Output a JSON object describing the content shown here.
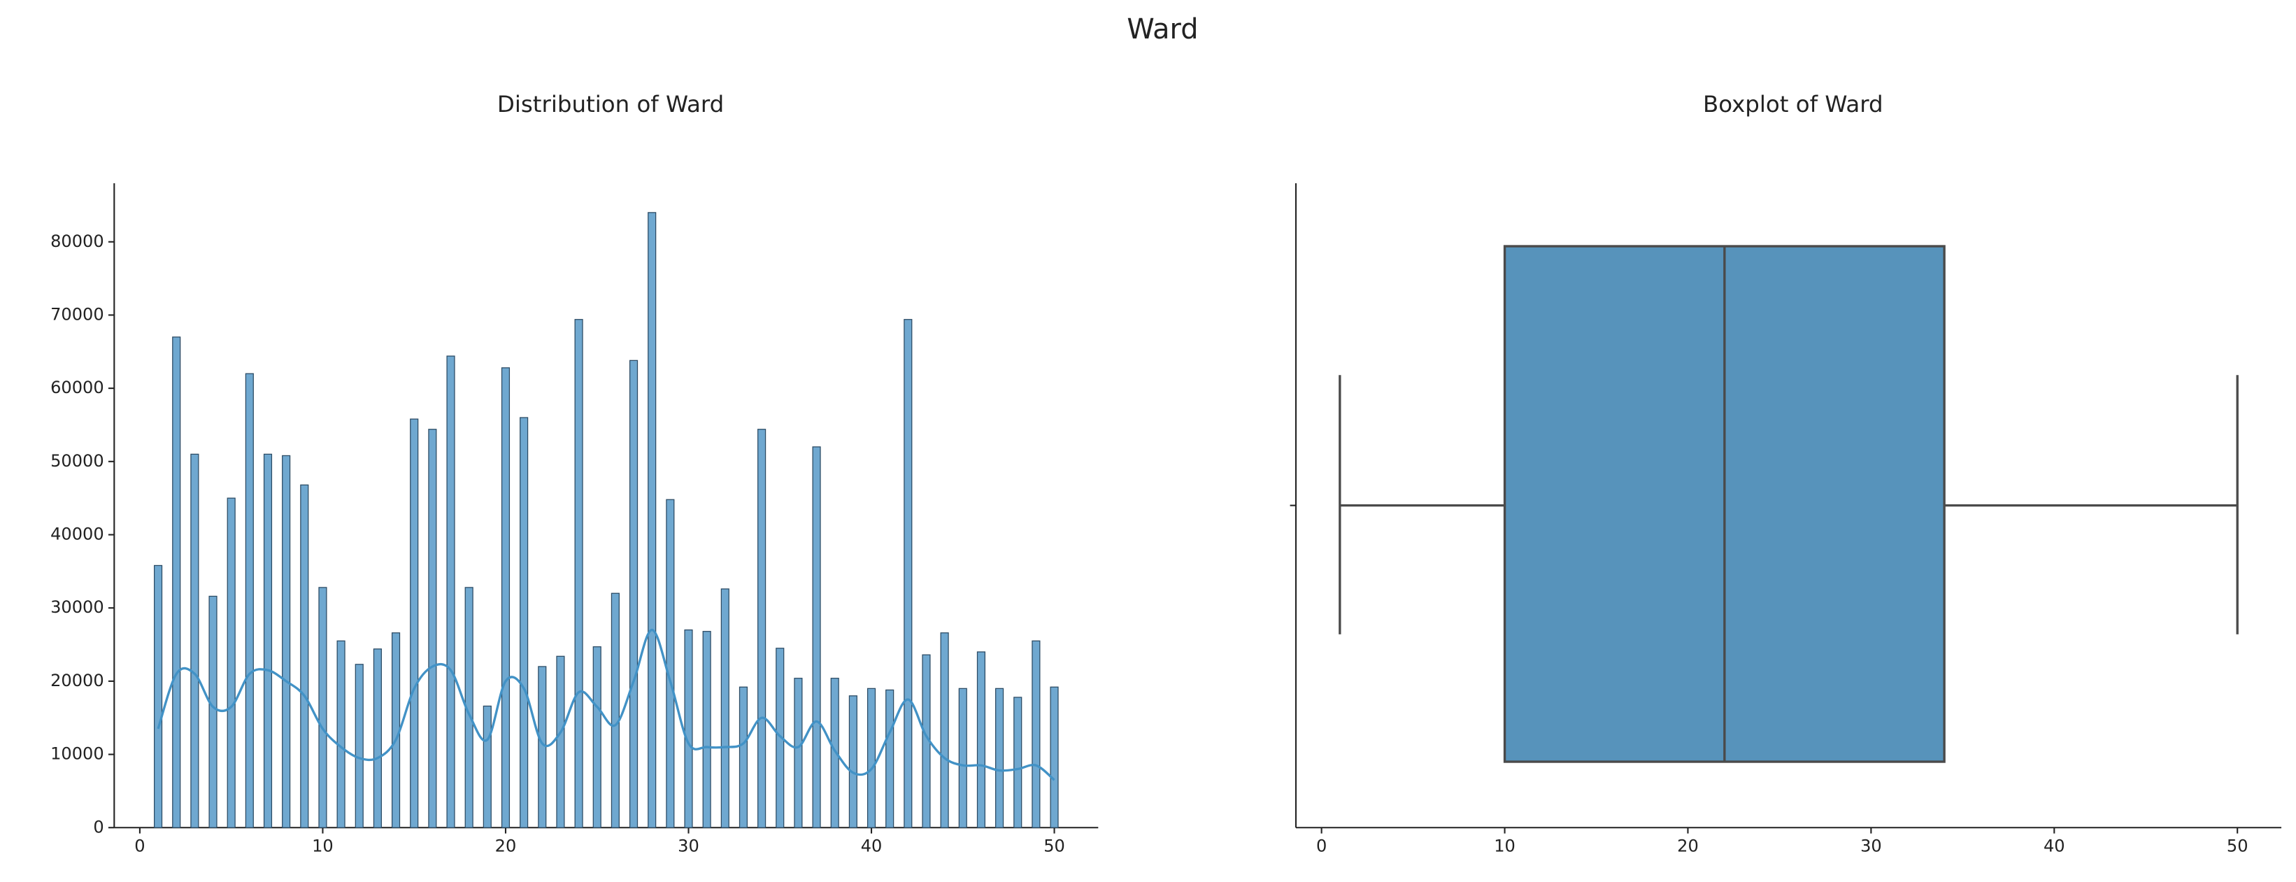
{
  "title": "Ward",
  "chart_data": [
    {
      "type": "histogram",
      "title": "Distribution of Ward",
      "x": [
        1,
        2,
        3,
        4,
        5,
        6,
        7,
        8,
        9,
        10,
        11,
        12,
        13,
        14,
        15,
        16,
        17,
        18,
        19,
        20,
        21,
        22,
        23,
        24,
        25,
        26,
        27,
        28,
        29,
        30,
        31,
        32,
        33,
        34,
        35,
        36,
        37,
        38,
        39,
        40,
        41,
        42,
        43,
        44,
        45,
        46,
        47,
        48,
        49,
        50
      ],
      "values": [
        35800,
        67000,
        51000,
        31600,
        45000,
        62000,
        51000,
        50800,
        46800,
        32800,
        25500,
        22300,
        24400,
        26600,
        55800,
        54400,
        64400,
        32800,
        16600,
        62800,
        56000,
        22000,
        23400,
        69400,
        24700,
        32000,
        63800,
        84000,
        44800,
        27000,
        26800,
        32600,
        19200,
        54400,
        24500,
        20400,
        52000,
        20400,
        18000,
        19000,
        18800,
        69400,
        23600,
        26600,
        19000,
        24000,
        19000,
        17800,
        25500,
        19200
      ],
      "color": "#6fa8d0",
      "line": {
        "x": [
          1,
          2,
          3,
          4,
          5,
          6,
          7,
          8,
          9,
          10,
          11,
          12,
          13,
          14,
          15,
          16,
          17,
          18,
          19,
          20,
          21,
          22,
          23,
          24,
          25,
          26,
          27,
          28,
          29,
          30,
          31,
          32,
          33,
          34,
          35,
          36,
          37,
          38,
          39,
          40,
          41,
          42,
          43,
          44,
          45,
          46,
          47,
          48,
          49,
          50
        ],
        "values": [
          13500,
          21000,
          21000,
          16500,
          16500,
          21000,
          21500,
          20000,
          18000,
          13500,
          11000,
          9500,
          9500,
          12000,
          19000,
          22000,
          21500,
          15500,
          12000,
          20000,
          19000,
          11500,
          13000,
          18500,
          16500,
          14000,
          20000,
          27000,
          20000,
          11500,
          11000,
          11000,
          11500,
          15000,
          12500,
          11000,
          14500,
          10500,
          7500,
          8000,
          13000,
          17500,
          12500,
          9500,
          8500,
          8500,
          7800,
          8000,
          8500,
          6500
        ],
        "color": "#4292c6"
      },
      "xlim": [
        -1.4,
        52.4
      ],
      "xticks": [
        0,
        10,
        20,
        30,
        40,
        50
      ],
      "ylim": [
        0,
        88000
      ],
      "yticks": [
        0,
        10000,
        20000,
        30000,
        40000,
        50000,
        60000,
        70000,
        80000
      ]
    },
    {
      "type": "box",
      "title": "Boxplot of Ward",
      "min": 1,
      "q1": 10,
      "median": 22,
      "q3": 34,
      "max": 50,
      "color": "#5793bb",
      "xlim": [
        -1.4,
        52.4
      ],
      "xticks": [
        0,
        10,
        20,
        30,
        40,
        50
      ]
    }
  ]
}
